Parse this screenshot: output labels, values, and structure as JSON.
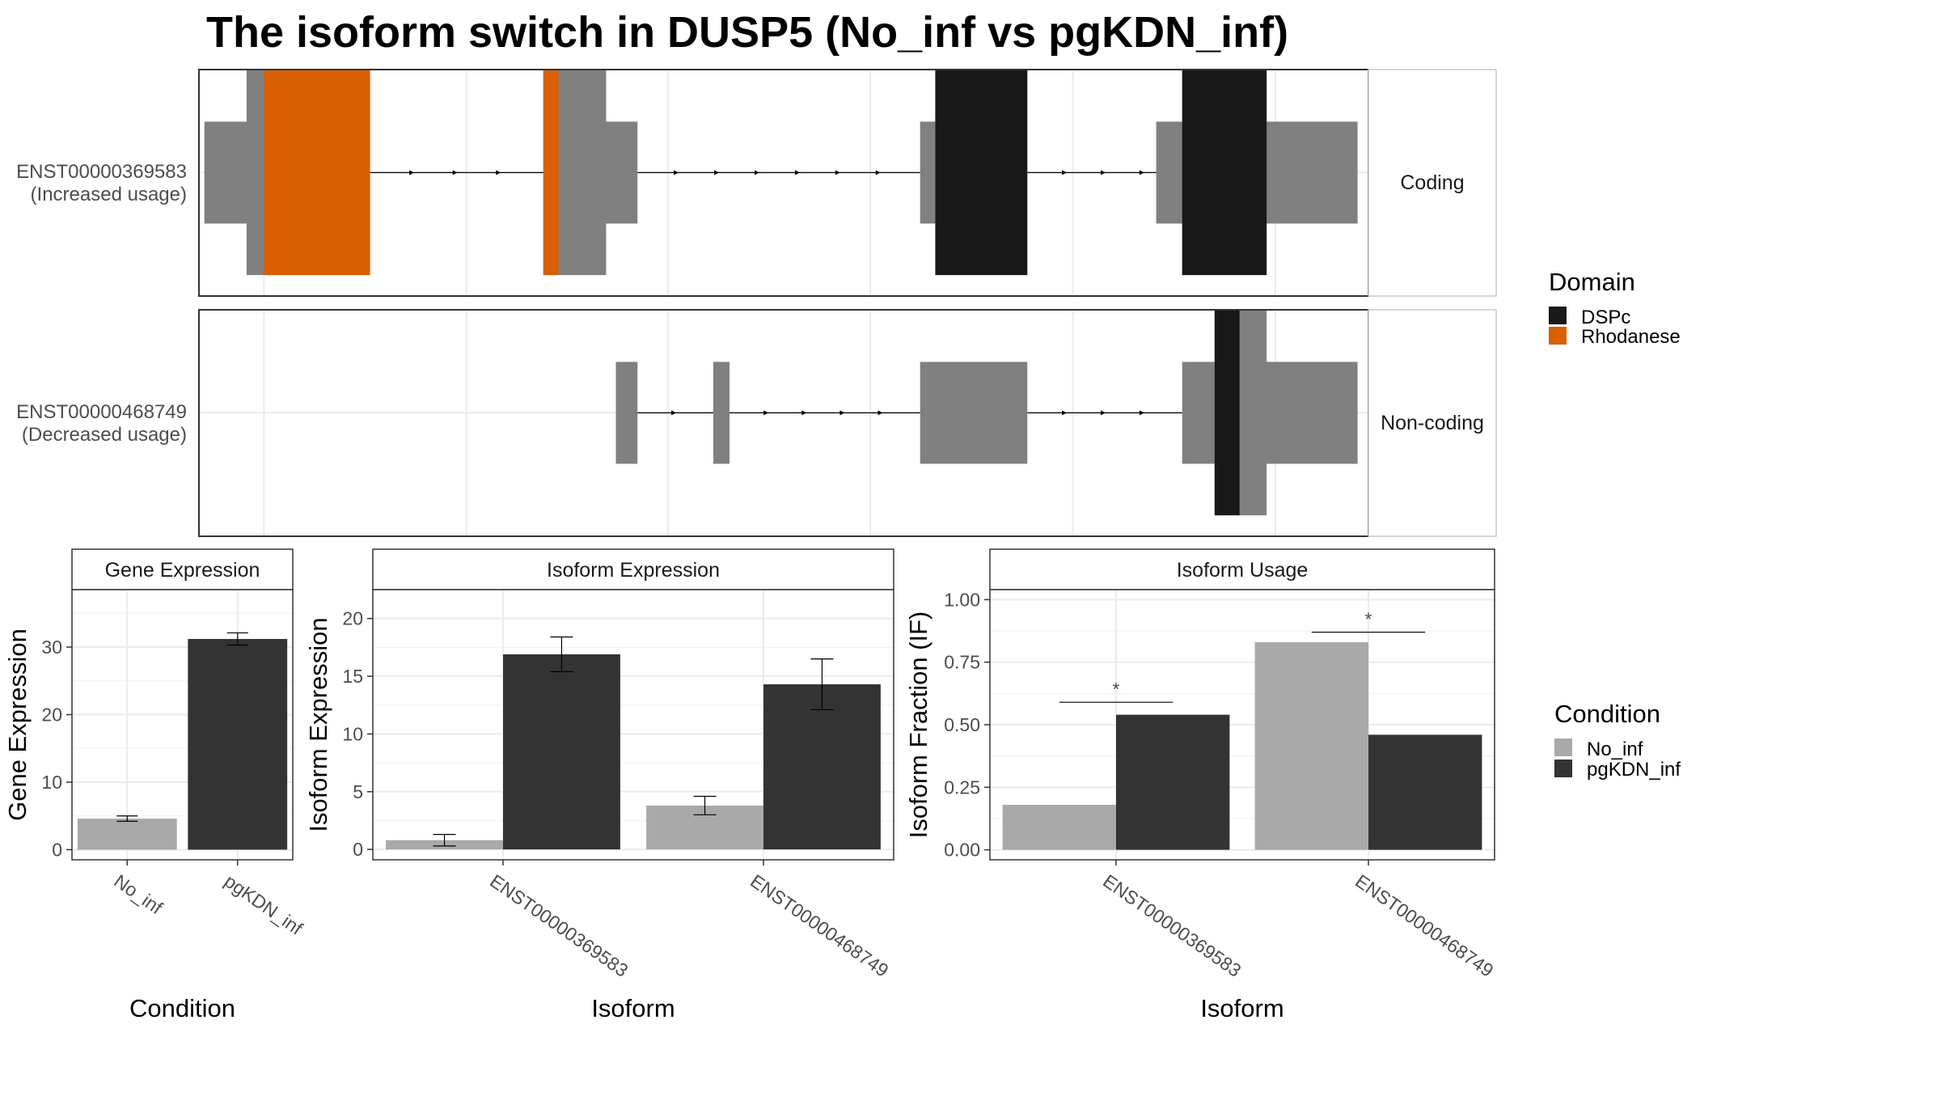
{
  "title": "The isoform switch in DUSP5 (No_inf vs pgKDN_inf)",
  "colors": {
    "exon": "#808080",
    "domain_DSPc": "#191919",
    "domain_Rhodanese": "#D95F02",
    "cond_No_inf": "#A9A9A9",
    "cond_pgKDN_inf": "#333333",
    "panel_border": "#333333",
    "grid": "#EBEBEB"
  },
  "transcripts": [
    {
      "id": "ENST00000369583",
      "usage": "(Increased usage)",
      "strip": "Coding",
      "utr": [
        [
          0.5,
          5.0
        ],
        [
          37.4,
          40.5
        ],
        [
          66.6,
          68.0
        ],
        [
          88.4,
          107.0
        ]
      ],
      "cds": [
        [
          4.4,
          15.8
        ],
        [
          31.8,
          37.6
        ],
        [
          68.0,
          76.5
        ],
        [
          90.8,
          98.6
        ]
      ],
      "domains": [
        {
          "name": "Rhodanese",
          "range": [
            6.0,
            15.8
          ]
        },
        {
          "name": "Rhodanese",
          "range": [
            31.8,
            33.2
          ]
        },
        {
          "name": "DSPc",
          "range": [
            68.0,
            76.5
          ]
        },
        {
          "name": "DSPc",
          "range": [
            90.8,
            98.6
          ]
        }
      ],
      "introns": [
        [
          15.8,
          31.8
        ],
        [
          40.5,
          66.6
        ],
        [
          76.5,
          90.8
        ]
      ]
    },
    {
      "id": "ENST00000468749",
      "usage": "(Decreased usage)",
      "strip": "Non-coding",
      "utr": [
        [
          38.5,
          40.5
        ],
        [
          47.5,
          49.0
        ],
        [
          66.6,
          76.5
        ],
        [
          90.8,
          107.0
        ]
      ],
      "cds": [
        [
          93.8,
          98.6
        ]
      ],
      "domains": [
        {
          "name": "DSPc",
          "range": [
            93.8,
            96.1
          ]
        }
      ],
      "introns": [
        [
          40.5,
          47.5
        ],
        [
          49.0,
          66.6
        ],
        [
          76.5,
          90.8
        ]
      ]
    }
  ],
  "legend_domain": {
    "title": "Domain",
    "items": [
      "DSPc",
      "Rhodanese"
    ]
  },
  "legend_condition": {
    "title": "Condition",
    "items": [
      "No_inf",
      "pgKDN_inf"
    ]
  },
  "chart_data": [
    {
      "type": "bar",
      "strip": "Gene Expression",
      "xlabel": "Condition",
      "ylabel": "Gene Expression",
      "categories": [
        "No_inf",
        "pgKDN_inf"
      ],
      "values": [
        4.6,
        31.2
      ],
      "errors": [
        0.4,
        0.9
      ],
      "ylim": [
        -1.5,
        38.5
      ],
      "yticks": [
        0,
        10,
        20,
        30
      ]
    },
    {
      "type": "bar",
      "strip": "Isoform Expression",
      "xlabel": "Isoform",
      "ylabel": "Isoform Expression",
      "categories": [
        "ENST00000369583",
        "ENST00000468749"
      ],
      "series": [
        {
          "name": "No_inf",
          "values": [
            0.8,
            3.8
          ],
          "errors": [
            0.5,
            0.8
          ]
        },
        {
          "name": "pgKDN_inf",
          "values": [
            16.9,
            14.3
          ],
          "errors": [
            1.5,
            2.2
          ]
        }
      ],
      "ylim": [
        -0.9,
        22.5
      ],
      "yticks": [
        0,
        5,
        10,
        15,
        20
      ]
    },
    {
      "type": "bar",
      "strip": "Isoform Usage",
      "xlabel": "Isoform",
      "ylabel": "Isoform Fraction (IF)",
      "categories": [
        "ENST00000369583",
        "ENST00000468749"
      ],
      "series": [
        {
          "name": "No_inf",
          "values": [
            0.18,
            0.83
          ]
        },
        {
          "name": "pgKDN_inf",
          "values": [
            0.54,
            0.46
          ]
        }
      ],
      "significance": [
        {
          "label": "*",
          "y": 0.59
        },
        {
          "label": "*",
          "y": 0.87
        }
      ],
      "ylim": [
        -0.04,
        1.04
      ],
      "yticks": [
        "0.00",
        "0.25",
        "0.50",
        "0.75",
        "1.00"
      ]
    }
  ]
}
